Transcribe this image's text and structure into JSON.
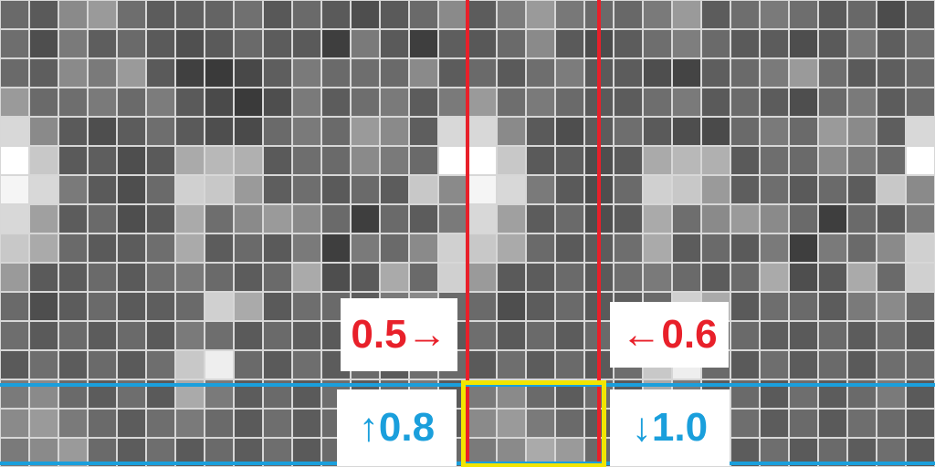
{
  "colors": {
    "grid_line": "#d7d7d7",
    "vertical_marker": "#e8202a",
    "horizontal_marker": "#1a9fdc",
    "highlight_box": "#f2e500",
    "label_bg": "#ffffff"
  },
  "labels": {
    "left": {
      "value": "0.5",
      "arrow": "→",
      "color": "#e8202a"
    },
    "right": {
      "value": "0.6",
      "arrow": "←",
      "color": "#e8202a"
    },
    "top": {
      "value": "0.8",
      "arrow": "↑",
      "color": "#1a9fdc"
    },
    "bottom": {
      "value": "1.0",
      "arrow": "↓",
      "color": "#1a9fdc"
    }
  },
  "grid": {
    "rows": 16,
    "cols": 32,
    "shades": [
      "6a6a6a",
      "5a5a5a",
      "8a8a8a",
      "9a9a9a",
      "6e6e6e",
      "5c5c5c",
      "606060",
      "646464",
      "707070",
      "585858",
      "6a6a6a",
      "5a5a5a",
      "4e4e4e",
      "5a5a5a",
      "6a6a6a",
      "8a8a8a",
      "5c5c5c",
      "7c7c7c",
      "9a9a9a",
      "787878",
      "6a6a6a",
      "686868",
      "7a7a7a",
      "9a9a9a",
      "5c5c5c",
      "6e6e6e",
      "7a7a7a",
      "6e6e6e",
      "5a5a5a",
      "686868",
      "4c4c4c",
      "5e5e5e",
      "6e6e6e",
      "4e4e4e",
      "7a7a7a",
      "5e5e5e",
      "6a6a6a",
      "5a5a5a",
      "505050",
      "5a5a5a",
      "6a6a6a",
      "5c5c5c",
      "5a5a5a",
      "3e3e3e",
      "7a7a7a",
      "5a5a5a",
      "3e3e3e",
      "5e5e5e",
      "585858",
      "6a6a6a",
      "8a8a8a",
      "5a5a5a",
      "4c4c4c",
      "5c5c5c",
      "6e6e6e",
      "7e7e7e",
      "6a6a6a",
      "5a5a5a",
      "5c5c5c",
      "4e4e4e",
      "5a5a5a",
      "787878",
      "5e5e5e",
      "6e6e6e",
      "6a6a6a",
      "5e5e5e",
      "8a8a8a",
      "7a7a7a",
      "9a9a9a",
      "5a5a5a",
      "404040",
      "3a3a3a",
      "484848",
      "5e5e5e",
      "7a7a7a",
      "6a6a6a",
      "6e6e6e",
      "6a6a6a",
      "8a8a8a",
      "5c5c5c",
      "6a6a6a",
      "5a5a5a",
      "6e6e6e",
      "7c7c7c",
      "5a5a5a",
      "5c5c5c",
      "4e4e4e",
      "444444",
      "5e5e5e",
      "6a6a6a",
      "7a7a7a",
      "9a9a9a",
      "6e6e6e",
      "5a5a5a",
      "5e5e5e",
      "6a6a6a",
      "9a9a9a",
      "6a6a6a",
      "6e6e6e",
      "7a7a7a",
      "6a6a6a",
      "7c7c7c",
      "5a5a5a",
      "4a4a4a",
      "3a3a3a",
      "4e4e4e",
      "7a7a7a",
      "5c5c5c",
      "6e6e6e",
      "7a7a7a",
      "5c5c5c",
      "7a7a7a",
      "9a9a9a",
      "6e6e6e",
      "7a7a7a",
      "6a6a6a",
      "5a5a5a",
      "5c5c5c",
      "6e6e6e",
      "7a7a7a",
      "5a5a5a",
      "6a6a6a",
      "5c5c5c",
      "4e4e4e",
      "6a6a6a",
      "7a7a7a",
      "5c5c5c",
      "6a6a6a",
      "d8d8d8",
      "8a8a8a",
      "5a5a5a",
      "4e4e4e",
      "5c5c5c",
      "6e6e6e",
      "5a5a5a",
      "4e4e4e",
      "4a4a4a",
      "6a6a6a",
      "7a7a7a",
      "6a6a6a",
      "9a9a9a",
      "8a8a8a",
      "5e5e5e",
      "d8d8d8",
      "d8d8d8",
      "8a8a8a",
      "5a5a5a",
      "4e4e4e",
      "5c5c5c",
      "6e6e6e",
      "5a5a5a",
      "4e4e4e",
      "4a4a4a",
      "6a6a6a",
      "7a7a7a",
      "6a6a6a",
      "9a9a9a",
      "8a8a8a",
      "5e5e5e",
      "d8d8d8",
      "ffffff",
      "c8c8c8",
      "5a5a5a",
      "5e5e5e",
      "4e4e4e",
      "5a5a5a",
      "aaaaaa",
      "b8b8b8",
      "b0b0b0",
      "5a5a5a",
      "6e6e6e",
      "6a6a6a",
      "8a8a8a",
      "7a7a7a",
      "6a6a6a",
      "ffffff",
      "ffffff",
      "c8c8c8",
      "5a5a5a",
      "5e5e5e",
      "4e4e4e",
      "5a5a5a",
      "aaaaaa",
      "b8b8b8",
      "b0b0b0",
      "5a5a5a",
      "6e6e6e",
      "6a6a6a",
      "8a8a8a",
      "7a7a7a",
      "6a6a6a",
      "ffffff",
      "f5f5f5",
      "d8d8d8",
      "7a7a7a",
      "5a5a5a",
      "4e4e4e",
      "6a6a6a",
      "d0d0d0",
      "c8c8c8",
      "9a9a9a",
      "5e5e5e",
      "6e6e6e",
      "5a5a5a",
      "6a6a6a",
      "5c5c5c",
      "c8c8c8",
      "8a8a8a",
      "f5f5f5",
      "d8d8d8",
      "7a7a7a",
      "5a5a5a",
      "4e4e4e",
      "6a6a6a",
      "d0d0d0",
      "c8c8c8",
      "9a9a9a",
      "5e5e5e",
      "6e6e6e",
      "5a5a5a",
      "6a6a6a",
      "5c5c5c",
      "c8c8c8",
      "8a8a8a",
      "d8d8d8",
      "a0a0a0",
      "5c5c5c",
      "6a6a6a",
      "4e4e4e",
      "5a5a5a",
      "aaaaaa",
      "6e6e6e",
      "8a8a8a",
      "9a9a9a",
      "8a8a8a",
      "6a6a6a",
      "3e3e3e",
      "6a6a6a",
      "5c5c5c",
      "7a7a7a",
      "d8d8d8",
      "a0a0a0",
      "5c5c5c",
      "6a6a6a",
      "4e4e4e",
      "5a5a5a",
      "aaaaaa",
      "6e6e6e",
      "8a8a8a",
      "9a9a9a",
      "8a8a8a",
      "6a6a6a",
      "3e3e3e",
      "6a6a6a",
      "5c5c5c",
      "7a7a7a",
      "c8c8c8",
      "aaaaaa",
      "6a6a6a",
      "5a5a5a",
      "5c5c5c",
      "6e6e6e",
      "aaaaaa",
      "5c5c5c",
      "6a6a6a",
      "5a5a5a",
      "7a7a7a",
      "3e3e3e",
      "7a7a7a",
      "6a6a6a",
      "8a8a8a",
      "d0d0d0",
      "c8c8c8",
      "aaaaaa",
      "6a6a6a",
      "5a5a5a",
      "5c5c5c",
      "6e6e6e",
      "aaaaaa",
      "5c5c5c",
      "6a6a6a",
      "5a5a5a",
      "7a7a7a",
      "3e3e3e",
      "7a7a7a",
      "6a6a6a",
      "8a8a8a",
      "d0d0d0",
      "9a9a9a",
      "5a5a5a",
      "5c5c5c",
      "6a6a6a",
      "5a5a5a",
      "6e6e6e",
      "7a7a7a",
      "6a6a6a",
      "5c5c5c",
      "6a6a6a",
      "aaaaaa",
      "4e4e4e",
      "5a5a5a",
      "aaaaaa",
      "6a6a6a",
      "d0d0d0",
      "9a9a9a",
      "5a5a5a",
      "5c5c5c",
      "6a6a6a",
      "5a5a5a",
      "6e6e6e",
      "7a7a7a",
      "6a6a6a",
      "5c5c5c",
      "6a6a6a",
      "aaaaaa",
      "4e4e4e",
      "5a5a5a",
      "aaaaaa",
      "6a6a6a",
      "d0d0d0",
      "6a6a6a",
      "4e4e4e",
      "5c5c5c",
      "6a6a6a",
      "5a5a5a",
      "5e5e5e",
      "6a6a6a",
      "d0d0d0",
      "aaaaaa",
      "5a5a5a",
      "6e6e6e",
      "6a6a6a",
      "5c5c5c",
      "7a7a7a",
      "8a8a8a",
      "6a6a6a",
      "6a6a6a",
      "4e4e4e",
      "5c5c5c",
      "6a6a6a",
      "5a5a5a",
      "5e5e5e",
      "6a6a6a",
      "d0d0d0",
      "aaaaaa",
      "5a5a5a",
      "6e6e6e",
      "6a6a6a",
      "5c5c5c",
      "7a7a7a",
      "8a8a8a",
      "6a6a6a",
      "6e6e6e",
      "5a5a5a",
      "6a6a6a",
      "5c5c5c",
      "6a6a6a",
      "5a5a5a",
      "7a7a7a",
      "6e6e6e",
      "5a5a5a",
      "6a6a6a",
      "5e5e5e",
      "5a5a5a",
      "6a6a6a",
      "5c5c5c",
      "6e6e6e",
      "5a5a5a",
      "6e6e6e",
      "5a5a5a",
      "6a6a6a",
      "5c5c5c",
      "6a6a6a",
      "5a5a5a",
      "7a7a7a",
      "6e6e6e",
      "5a5a5a",
      "6a6a6a",
      "5e5e5e",
      "5a5a5a",
      "6a6a6a",
      "5c5c5c",
      "6e6e6e",
      "5a5a5a",
      "5a5a5a",
      "6e6e6e",
      "5c5c5c",
      "6a6a6a",
      "5a5a5a",
      "6e6e6e",
      "c8c8c8",
      "eeeeee",
      "6a6a6a",
      "5a5a5a",
      "6e6e6e",
      "5c5c5c",
      "6a6a6a",
      "5a5a5a",
      "6e6e6e",
      "6a6a6a",
      "5a5a5a",
      "6e6e6e",
      "5c5c5c",
      "6a6a6a",
      "5a5a5a",
      "6e6e6e",
      "c8c8c8",
      "eeeeee",
      "6a6a6a",
      "5a5a5a",
      "6e6e6e",
      "5c5c5c",
      "6a6a6a",
      "5a5a5a",
      "6e6e6e",
      "6a6a6a",
      "7a7a7a",
      "8a8a8a",
      "6a6a6a",
      "5c5c5c",
      "6e6e6e",
      "5a5a5a",
      "aaaaaa",
      "7a7a7a",
      "5c5c5c",
      "6a6a6a",
      "5a5a5a",
      "6e6e6e",
      "5c5c5c",
      "6a6a6a",
      "7a7a7a",
      "5a5a5a",
      "7a7a7a",
      "8a8a8a",
      "6a6a6a",
      "5c5c5c",
      "6e6e6e",
      "5a5a5a",
      "aaaaaa",
      "7a7a7a",
      "5c5c5c",
      "6a6a6a",
      "5a5a5a",
      "6e6e6e",
      "5c5c5c",
      "6a6a6a",
      "7a7a7a",
      "5a5a5a",
      "8a8a8a",
      "9a9a9a",
      "7a7a7a",
      "6a6a6a",
      "5c5c5c",
      "6e6e6e",
      "7a7a7a",
      "6a6a6a",
      "5a5a5a",
      "6e6e6e",
      "5c5c5c",
      "6a6a6a",
      "5a5a5a",
      "6e6e6e",
      "6a6a6a",
      "5c5c5c",
      "8a8a8a",
      "9a9a9a",
      "7a7a7a",
      "6a6a6a",
      "5c5c5c",
      "6e6e6e",
      "7a7a7a",
      "6a6a6a",
      "5a5a5a",
      "6e6e6e",
      "5c5c5c",
      "6a6a6a",
      "5a5a5a",
      "6e6e6e",
      "6a6a6a",
      "5c5c5c",
      "7a7a7a",
      "8a8a8a",
      "9a9a9a",
      "6a6a6a",
      "5c5c5c",
      "6e6e6e",
      "5a5a5a",
      "6a6a6a",
      "5c5c5c",
      "6e6e6e",
      "5a5a5a",
      "6a6a6a",
      "5c5c5c",
      "6e6e6e",
      "5a5a5a",
      "6a6a6a",
      "7a7a7a",
      "8a8a8a",
      "aaaaaa",
      "9a9a9a",
      "6a6a6a",
      "5c5c5c",
      "6e6e6e",
      "5a5a5a",
      "6a6a6a",
      "5c5c5c",
      "6e6e6e",
      "5a5a5a",
      "6a6a6a",
      "5c5c5c",
      "6e6e6e",
      "5a5a5a"
    ]
  }
}
